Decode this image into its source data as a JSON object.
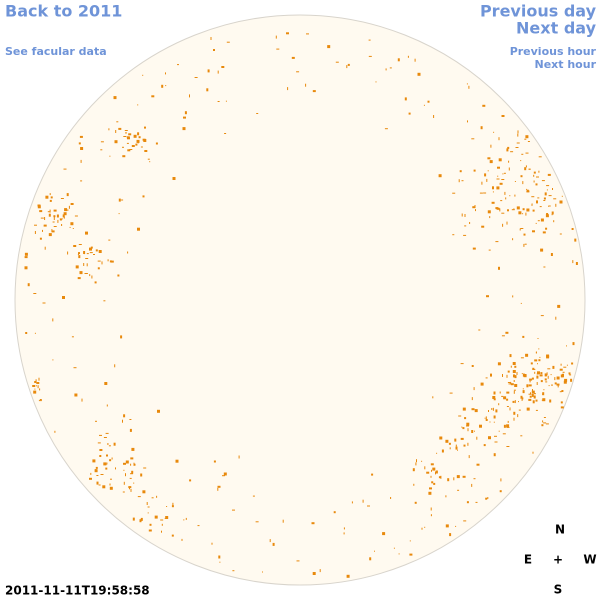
{
  "links": {
    "back": "Back to 2011",
    "facular": "See facular data",
    "previous_day": "Previous day",
    "next_day": "Next day",
    "previous_hour": "Previous hour",
    "next_hour": "Next hour"
  },
  "compass": {
    "north": "N",
    "east": "E",
    "center": "+",
    "west": "W",
    "south": "S"
  },
  "timestamp": "2011-11-11T19:58:58"
}
